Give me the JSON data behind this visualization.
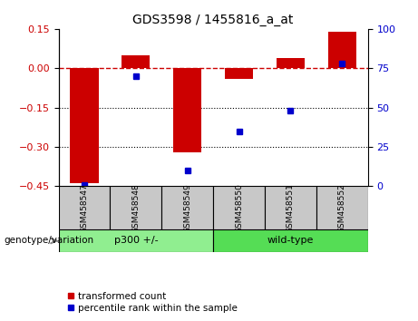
{
  "title": "GDS3598 / 1455816_a_at",
  "samples": [
    "GSM458547",
    "GSM458548",
    "GSM458549",
    "GSM458550",
    "GSM458551",
    "GSM458552"
  ],
  "red_bars": [
    -0.44,
    0.05,
    -0.32,
    -0.04,
    0.04,
    0.14
  ],
  "blue_dots": [
    1.0,
    70.0,
    10.0,
    35.0,
    48.0,
    78.0
  ],
  "groups": [
    {
      "label": "p300 +/-",
      "indices": [
        0,
        1,
        2
      ],
      "color": "#90EE90"
    },
    {
      "label": "wild-type",
      "indices": [
        3,
        4,
        5
      ],
      "color": "#55DD55"
    }
  ],
  "ylim_left": [
    -0.45,
    0.15
  ],
  "yticks_left": [
    0.15,
    0.0,
    -0.15,
    -0.3,
    -0.45
  ],
  "yticks_right": [
    100,
    75,
    50,
    25,
    0
  ],
  "ylim_right": [
    0,
    100
  ],
  "hline_y": 0.0,
  "dotted_lines": [
    -0.15,
    -0.3
  ],
  "bar_color": "#CC0000",
  "dot_color": "#0000CC",
  "dashed_line_color": "#CC0000",
  "group_label": "genotype/variation",
  "legend_items": [
    "transformed count",
    "percentile rank within the sample"
  ],
  "bar_width": 0.55,
  "background_color": "#ffffff",
  "plot_bg": "#ffffff",
  "tick_label_color_left": "#CC0000",
  "tick_label_color_right": "#0000CC",
  "sample_box_color": "#C8C8C8",
  "title_fontsize": 10
}
